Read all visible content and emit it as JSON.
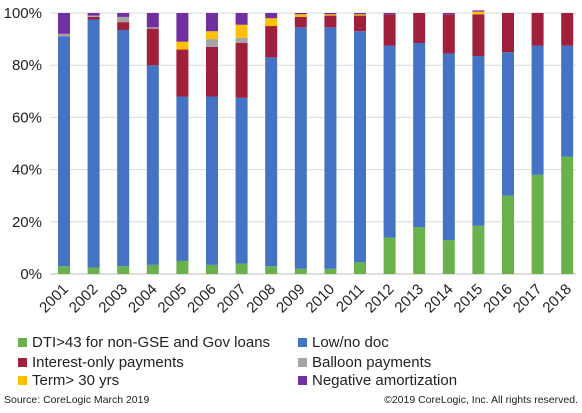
{
  "chart_data": {
    "type": "bar",
    "stacked": true,
    "categories": [
      "2001",
      "2002",
      "2003",
      "2004",
      "2005",
      "2006",
      "2007",
      "2008",
      "2009",
      "2010",
      "2011",
      "2012",
      "2013",
      "2014",
      "2015",
      "2016",
      "2017",
      "2018"
    ],
    "ylim": [
      0,
      100
    ],
    "y_ticks": [
      "0%",
      "20%",
      "40%",
      "60%",
      "80%",
      "100%"
    ],
    "gridlines": true,
    "legend_position": "bottom",
    "series": [
      {
        "name": "DTI>43 for non-GSE and Gov loans",
        "color": "#6ab04c",
        "values": [
          3,
          2.5,
          3,
          3.5,
          5,
          3.5,
          4,
          3,
          2,
          2,
          4.5,
          14,
          18,
          13,
          18.5,
          30,
          38,
          45
        ]
      },
      {
        "name": "Low/no doc",
        "color": "#4472c4",
        "values": [
          88,
          95,
          90.5,
          76.5,
          63,
          64.5,
          63.5,
          80,
          92.5,
          92.5,
          88.5,
          73.5,
          70.5,
          71.5,
          65,
          55,
          49.5,
          42.5
        ]
      },
      {
        "name": "Interest-only payments",
        "color": "#a0203c",
        "values": [
          0,
          1,
          3,
          14,
          18,
          19,
          21,
          12,
          4,
          4.5,
          6,
          12,
          11.5,
          15,
          16,
          15,
          12.5,
          12.5
        ]
      },
      {
        "name": "Balloon payments",
        "color": "#a5a5a5",
        "values": [
          1,
          0.5,
          2,
          0.5,
          0,
          3,
          2,
          0,
          0,
          0,
          0,
          0,
          0,
          0,
          0,
          0,
          0,
          0
        ]
      },
      {
        "name": "Term> 30 yrs",
        "color": "#ffc000",
        "values": [
          0,
          0,
          0,
          0,
          3,
          3,
          5,
          3,
          1,
          0.5,
          0.5,
          0,
          0,
          0,
          1,
          0,
          0,
          0
        ]
      },
      {
        "name": "Negative amortization",
        "color": "#7030a0",
        "values": [
          8,
          1,
          1.5,
          5.5,
          11,
          7,
          4.5,
          2,
          0.5,
          0.5,
          0.5,
          0.5,
          0,
          0.5,
          0.5,
          0,
          0,
          0
        ]
      }
    ],
    "legend_order": [
      0,
      1,
      2,
      3,
      4,
      5
    ]
  },
  "footer": {
    "source": "Source: CoreLogic March 2019",
    "copyright": "©2019 CoreLogic, Inc. All rights reserved."
  }
}
